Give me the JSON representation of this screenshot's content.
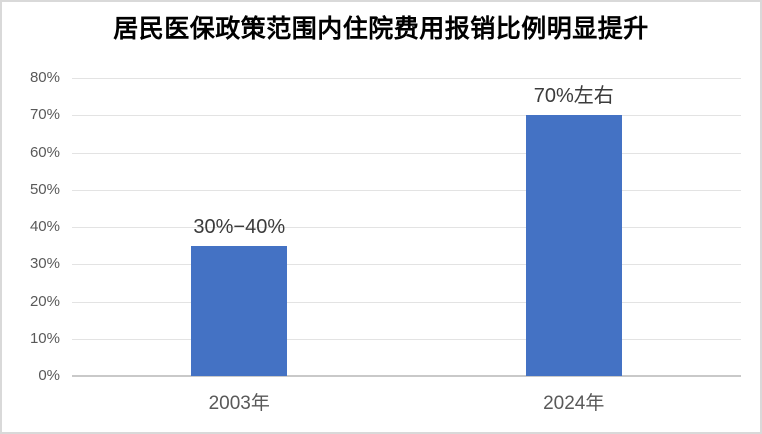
{
  "title": "居民医保政策范围内住院费用报销比例明显提升",
  "colors": {
    "background": "#FFFFFF",
    "frame_border": "#D9D9D9",
    "bar": "#4472C4",
    "gridline": "#E3E3E3",
    "axis_line": "#C9C9C9",
    "tick_label": "#595959",
    "data_label": "#3B3B3B",
    "title_text": "#000000"
  },
  "chart_data": {
    "type": "bar",
    "title": "居民医保政策范围内住院费用报销比例明显提升",
    "categories": [
      "2003年",
      "2024年"
    ],
    "values": [
      35,
      70
    ],
    "bar_labels": [
      "30%−40%",
      "70%左右"
    ],
    "xlabel": "",
    "ylabel": "",
    "ylim": [
      0,
      80
    ],
    "yticks": [
      0,
      10,
      20,
      30,
      40,
      50,
      60,
      70,
      80
    ],
    "ytick_labels": [
      "0%",
      "10%",
      "20%",
      "30%",
      "40%",
      "50%",
      "60%",
      "70%",
      "80%"
    ],
    "grid": true,
    "legend": false
  }
}
